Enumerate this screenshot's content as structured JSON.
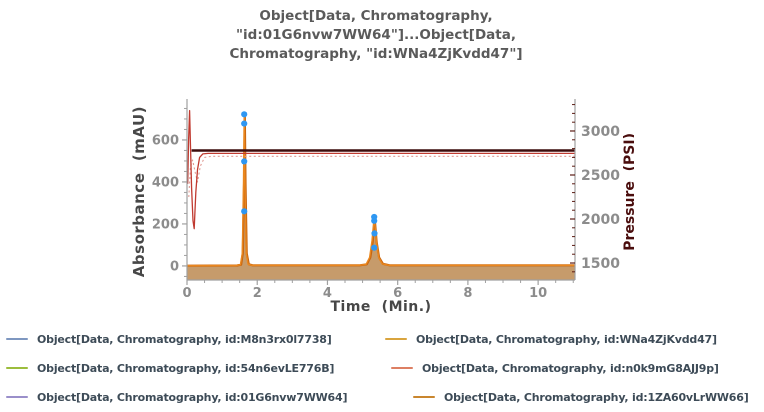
{
  "title_lines": [
    "Object[Data, Chromatography,",
    "\"id:01G6nvw7WW64\"]...Object[Data,",
    "Chromatography, \"id:WNa4ZjKvdd47\"]"
  ],
  "chart_data": {
    "type": "line",
    "title": "Object[Data, Chromatography, \"id:01G6nvw7WW64\"]...Object[Data, Chromatography, \"id:WNa4ZjKvdd47\"]",
    "xlabel": "Time  (Min.)",
    "ylabel_left": "Absorbance  (mAU)",
    "ylabel_right": "Pressure  (PSI)",
    "grid": false,
    "xlim": [
      0,
      11.05
    ],
    "x_major_ticks": [
      0,
      2,
      4,
      6,
      8,
      10
    ],
    "x_minor_step": 0.5,
    "left_axis": {
      "lim": [
        -67,
        776
      ],
      "major_ticks": [
        0,
        200,
        400,
        600
      ],
      "minor_step": 50,
      "tick_color": "#a0a0a0",
      "label_color": "#8c8c8c"
    },
    "right_axis": {
      "lim": [
        1307,
        3318
      ],
      "major_ticks": [
        1500,
        2000,
        2500,
        3000
      ],
      "minor_step": 100,
      "tick_color": "#5a1a12",
      "label_color": "#8c8c8c"
    },
    "series": [
      {
        "name": "absorbance-fill",
        "axis": "left",
        "draw": "area",
        "color": "#c69b6b",
        "width": 0,
        "points": [
          [
            0,
            1
          ],
          [
            1.4,
            2
          ],
          [
            1.52,
            6
          ],
          [
            1.575,
            60
          ],
          [
            1.61,
            400
          ],
          [
            1.63,
            730
          ],
          [
            1.65,
            400
          ],
          [
            1.685,
            60
          ],
          [
            1.74,
            8
          ],
          [
            1.85,
            3
          ],
          [
            4.9,
            3
          ],
          [
            5.1,
            8
          ],
          [
            5.2,
            40
          ],
          [
            5.27,
            120
          ],
          [
            5.33,
            235
          ],
          [
            5.39,
            120
          ],
          [
            5.46,
            40
          ],
          [
            5.56,
            10
          ],
          [
            5.75,
            3
          ],
          [
            11.05,
            3
          ]
        ]
      },
      {
        "name": "absorbance-trace-dark",
        "axis": "left",
        "draw": "line",
        "color": "#c8650f",
        "width": 2.2,
        "points": [
          [
            0,
            1
          ],
          [
            1.42,
            2
          ],
          [
            1.54,
            6
          ],
          [
            1.59,
            60
          ],
          [
            1.625,
            390
          ],
          [
            1.645,
            715
          ],
          [
            1.665,
            390
          ],
          [
            1.7,
            60
          ],
          [
            1.76,
            8
          ],
          [
            1.87,
            3
          ],
          [
            4.92,
            3
          ],
          [
            5.12,
            8
          ],
          [
            5.22,
            40
          ],
          [
            5.29,
            115
          ],
          [
            5.345,
            225
          ],
          [
            5.4,
            115
          ],
          [
            5.47,
            40
          ],
          [
            5.58,
            10
          ],
          [
            5.77,
            3
          ],
          [
            11.05,
            3
          ]
        ]
      },
      {
        "name": "absorbance-trace-light",
        "axis": "left",
        "draw": "line",
        "color": "#ea871e",
        "width": 1.4,
        "points": [
          [
            0,
            1
          ],
          [
            1.4,
            2
          ],
          [
            1.52,
            6
          ],
          [
            1.575,
            60
          ],
          [
            1.61,
            400
          ],
          [
            1.63,
            730
          ],
          [
            1.65,
            400
          ],
          [
            1.685,
            60
          ],
          [
            1.74,
            8
          ],
          [
            1.85,
            3
          ],
          [
            4.9,
            3
          ],
          [
            5.1,
            8
          ],
          [
            5.2,
            40
          ],
          [
            5.27,
            120
          ],
          [
            5.33,
            235
          ],
          [
            5.39,
            120
          ],
          [
            5.46,
            40
          ],
          [
            5.56,
            10
          ],
          [
            5.75,
            3
          ],
          [
            11.05,
            3
          ]
        ]
      },
      {
        "name": "pressure-trace-dotted",
        "axis": "right",
        "draw": "line",
        "color": "#e09a94",
        "width": 1.1,
        "dash": "2 2.5",
        "points": [
          [
            0.05,
            2250
          ],
          [
            0.1,
            2600
          ],
          [
            0.16,
            2670
          ],
          [
            0.24,
            2520
          ],
          [
            0.3,
            2420
          ],
          [
            0.38,
            2600
          ],
          [
            0.5,
            2700
          ],
          [
            0.7,
            2712
          ],
          [
            11.05,
            2712
          ]
        ]
      },
      {
        "name": "pressure-trace-red",
        "axis": "right",
        "draw": "line",
        "color": "#c03a30",
        "width": 1.3,
        "points": [
          [
            0.02,
            2400
          ],
          [
            0.045,
            2900
          ],
          [
            0.075,
            3230
          ],
          [
            0.1,
            2820
          ],
          [
            0.13,
            2350
          ],
          [
            0.17,
            1980
          ],
          [
            0.205,
            1890
          ],
          [
            0.25,
            2300
          ],
          [
            0.3,
            2560
          ],
          [
            0.36,
            2700
          ],
          [
            0.45,
            2740
          ],
          [
            0.6,
            2745
          ],
          [
            11.05,
            2745
          ]
        ]
      },
      {
        "name": "pressure-trace-dark",
        "axis": "right",
        "draw": "line",
        "color": "#3c0d0d",
        "width": 2.4,
        "points": [
          [
            0.13,
            2778
          ],
          [
            11.05,
            2778
          ]
        ]
      }
    ],
    "markers": {
      "name": "peak-markers",
      "color": "#2e97f2",
      "radius": 3.1,
      "axis": "left",
      "points": [
        [
          1.63,
          722
        ],
        [
          1.63,
          678
        ],
        [
          1.63,
          498
        ],
        [
          1.63,
          260
        ],
        [
          5.33,
          233
        ],
        [
          5.33,
          215
        ],
        [
          5.34,
          155
        ],
        [
          5.33,
          87
        ]
      ]
    }
  },
  "legend": {
    "items": [
      {
        "label": "Object[Data, Chromatography, id:M8n3rx0l7738]",
        "color": "#7e97c0"
      },
      {
        "label": "Object[Data, Chromatography, id:WNa4ZjKvdd47]",
        "color": "#d9a43e"
      },
      {
        "label": "Object[Data, Chromatography, id:54n6evLE776B]",
        "color": "#9cbd3c"
      },
      {
        "label": "Object[Data, Chromatography, id:n0k9mG8AJJ9p]",
        "color": "#dd7f63"
      },
      {
        "label": "Object[Data, Chromatography, id:01G6nvw7WW64]",
        "color": "#9a8fca"
      },
      {
        "label": "Object[Data, Chromatography, id:1ZA60vLrWW66]",
        "color": "#c9862e"
      }
    ]
  }
}
